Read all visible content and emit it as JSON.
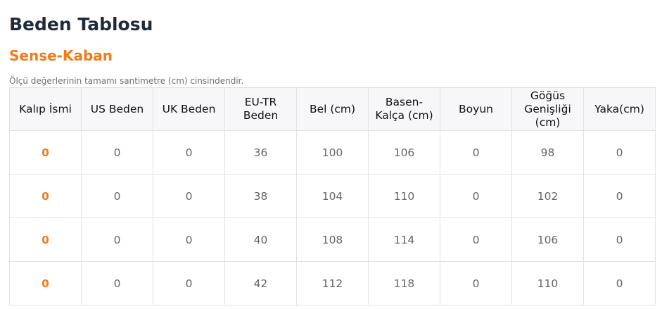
{
  "page": {
    "title": "Beden Tablosu",
    "product_name": "Sense-Kaban",
    "note": "Ölçü değerlerinin tamamı santimetre (cm) cinsindendir."
  },
  "table": {
    "headers": [
      "Kalıp İsmi",
      "US Beden",
      "UK Beden",
      "EU-TR Beden",
      "Bel (cm)",
      "Basen-Kalça (cm)",
      "Boyun",
      "Göğüs Genişliği (cm)",
      "Yaka(cm)"
    ],
    "rows": [
      [
        "0",
        "0",
        "0",
        "36",
        "100",
        "106",
        "0",
        "98",
        "0"
      ],
      [
        "0",
        "0",
        "0",
        "38",
        "104",
        "110",
        "0",
        "102",
        "0"
      ],
      [
        "0",
        "0",
        "0",
        "40",
        "108",
        "114",
        "0",
        "106",
        "0"
      ],
      [
        "0",
        "0",
        "0",
        "42",
        "112",
        "118",
        "0",
        "110",
        "0"
      ]
    ]
  },
  "colors": {
    "title": "#1f2b3b",
    "accent": "#f27a1a",
    "header_bg": "#f7f7f9",
    "border": "#e2e2e2"
  }
}
